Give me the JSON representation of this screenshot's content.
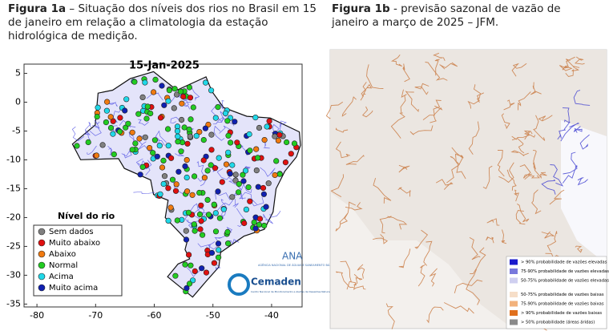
{
  "figure_a": {
    "label": "Figura 1a",
    "caption": "– Situação dos níveis dos rios no Brasil em 15 de janeiro em relação a climatologia da estação hidrológica de medição.",
    "map_title": "15-Jan-2025",
    "xlim": [
      -82.2,
      -34.8
    ],
    "ylim": [
      -35.5,
      6.6
    ],
    "xticks": [
      -80,
      -70,
      -60,
      -50,
      -40
    ],
    "yticks": [
      5,
      0,
      -5,
      -10,
      -15,
      -20,
      -25,
      -30,
      -35
    ],
    "legend": {
      "title": "Nível do rio",
      "items": [
        {
          "name": "Sem dados",
          "color": "#808080"
        },
        {
          "name": "Muito abaixo",
          "color": "#e01010"
        },
        {
          "name": "Abaixo",
          "color": "#f07a10"
        },
        {
          "name": "Normal",
          "color": "#22cc22"
        },
        {
          "name": "Acima",
          "color": "#20d8e8"
        },
        {
          "name": "Muito acima",
          "color": "#1020b0"
        }
      ]
    },
    "logos": {
      "ana": "ANA",
      "ana_sub": "AGÊNCIA NACIONAL DE ÁGUAS E SANEAMENTO BÁSICO",
      "cemaden": "Cemaden",
      "cemaden_sub": "Centro Nacional de Monitoramento e Alertas de Desastres Naturais"
    }
  },
  "figure_b": {
    "label": "Figura 1b",
    "caption": "- previsão sazonal de vazão de janeiro a março de 2025 – JFM.",
    "legend": [
      {
        "name": "> 90% probabilidade de vazões elevadas",
        "color": "#1a1acc"
      },
      {
        "name": "75-90% probabilidade de vazões elevadas",
        "color": "#7878dc"
      },
      {
        "name": "50-75% probabilidade de vazões elevadas",
        "color": "#cfcff0"
      },
      {
        "name": "50-75% probabilidade de vazões baixas",
        "color": "#f6dec8"
      },
      {
        "name": "75-90% probabilidade de vazões baixas",
        "color": "#f2b27c"
      },
      {
        "name": "> 90% probabilidade de vazões baixas",
        "color": "#e0701e"
      },
      {
        "name": "> 50% probabilidade (áreas áridas)",
        "color": "#8a8a8a"
      }
    ]
  }
}
